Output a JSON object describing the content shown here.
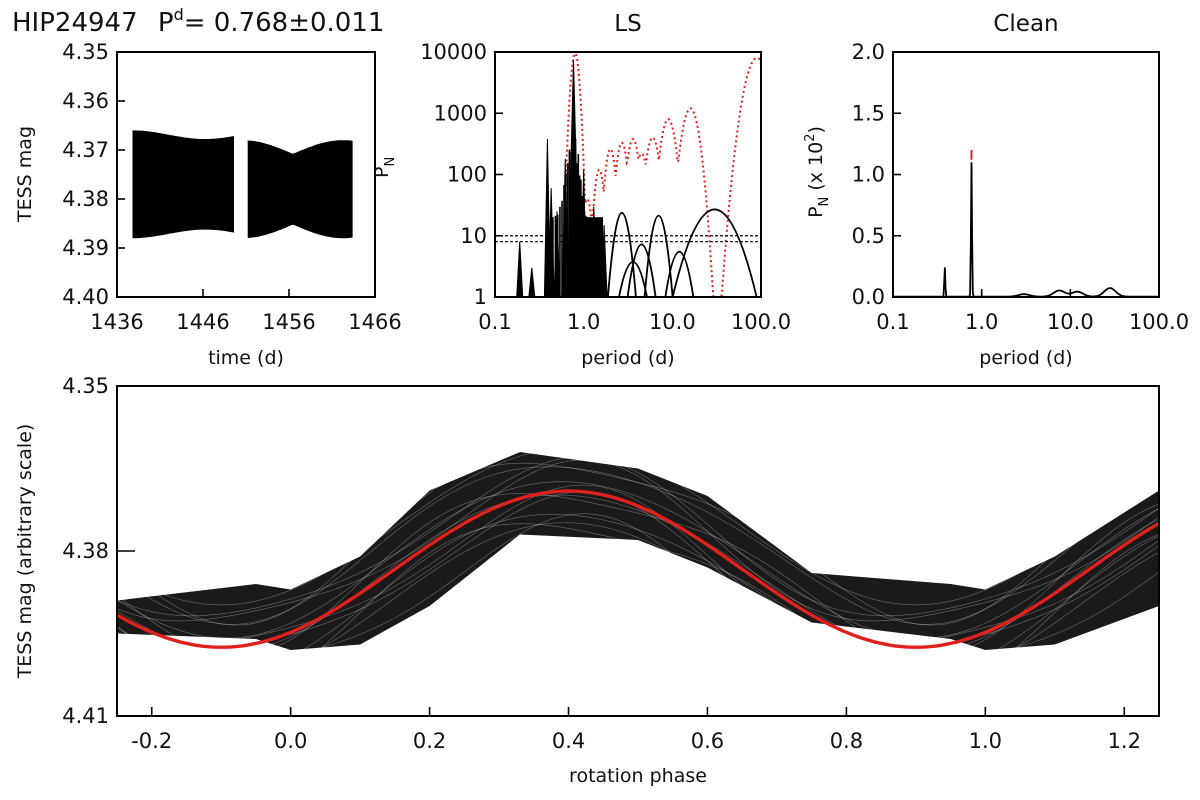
{
  "header": {
    "star": "HIP24947",
    "period_symbol": "P",
    "period_superscript": "d",
    "period_text": "= 0.768±0.011"
  },
  "colors": {
    "data": "#000000",
    "fit": "#e0201c",
    "window": "#e0201c"
  },
  "chart_data": [
    {
      "id": "lightcurve",
      "type": "scatter",
      "xlabel": "time (d)",
      "ylabel": "TESS mag",
      "xlim": [
        1436,
        1466
      ],
      "ylim": [
        4.4,
        4.35
      ],
      "xticks": [
        "1436",
        "1446",
        "1456",
        "1466"
      ],
      "yticks": [
        "4.35",
        "4.36",
        "4.37",
        "4.38",
        "4.39",
        "4.40"
      ],
      "segments": [
        {
          "t_start": 1437.8,
          "t_end": 1449.6,
          "center_mag": 4.377,
          "amplitude_mag": 0.011,
          "period_d": 0.768
        },
        {
          "t_start": 1451.2,
          "t_end": 1463.4,
          "center_mag": 4.378,
          "amplitude_mag": 0.01,
          "period_d": 0.768
        }
      ]
    },
    {
      "id": "ls_periodogram",
      "type": "line",
      "title": "LS",
      "xlabel": "period (d)",
      "ylabel": "P",
      "ylabel_subscript": "N",
      "xscale": "log",
      "yscale": "log",
      "xlim": [
        0.1,
        100
      ],
      "ylim": [
        1,
        10000
      ],
      "xticks": [
        "0.1",
        "1.0",
        "10.0",
        "100.0"
      ],
      "yticks": [
        "1",
        "10",
        "100",
        "1000",
        "10000"
      ],
      "false_alarm_levels": [
        8,
        10
      ],
      "series": [
        {
          "name": "periodogram",
          "peaks": [
            {
              "period": 0.19,
              "power": 8
            },
            {
              "period": 0.26,
              "power": 3
            },
            {
              "period": 0.39,
              "power": 380
            },
            {
              "period": 0.43,
              "power": 60
            },
            {
              "period": 0.5,
              "power": 25
            },
            {
              "period": 0.62,
              "power": 180
            },
            {
              "period": 0.768,
              "power": 7500
            },
            {
              "period": 1.0,
              "power": 120
            },
            {
              "period": 1.3,
              "power": 30
            },
            {
              "period": 1.7,
              "power": 15
            },
            {
              "period": 2.7,
              "power": 28
            },
            {
              "period": 3.6,
              "power": 4
            },
            {
              "period": 4.5,
              "power": 8
            },
            {
              "period": 7.0,
              "power": 25
            },
            {
              "period": 12.0,
              "power": 6
            },
            {
              "period": 30.0,
              "power": 32
            }
          ]
        },
        {
          "name": "window",
          "peaks": [
            {
              "period": 0.8,
              "power": 9500
            },
            {
              "period": 1.1,
              "power": 40
            },
            {
              "period": 1.5,
              "power": 120
            },
            {
              "period": 2.0,
              "power": 260
            },
            {
              "period": 2.7,
              "power": 330
            },
            {
              "period": 3.6,
              "power": 380
            },
            {
              "period": 4.5,
              "power": 220
            },
            {
              "period": 6.0,
              "power": 400
            },
            {
              "period": 9.0,
              "power": 800
            },
            {
              "period": 16.0,
              "power": 1200
            },
            {
              "period": 90.0,
              "power": 8000
            }
          ]
        }
      ]
    },
    {
      "id": "clean_periodogram",
      "type": "line",
      "title": "Clean",
      "xlabel": "period (d)",
      "ylabel": "P",
      "ylabel_subscript": "N",
      "ylabel_suffix": " (x 10",
      "ylabel_exponent": "2",
      "ylabel_close": ")",
      "xscale": "log",
      "xlim": [
        0.1,
        100
      ],
      "ylim": [
        0,
        2.0
      ],
      "xticks": [
        "0.1",
        "1.0",
        "10.0",
        "100.0"
      ],
      "yticks": [
        "0.0",
        "0.5",
        "1.0",
        "1.5",
        "2.0"
      ],
      "peaks": [
        {
          "period": 0.384,
          "power": 0.24
        },
        {
          "period": 0.768,
          "power": 1.1
        },
        {
          "period": 3.0,
          "power": 0.02
        },
        {
          "period": 7.5,
          "power": 0.05
        },
        {
          "period": 12.0,
          "power": 0.04
        },
        {
          "period": 28.0,
          "power": 0.07
        }
      ],
      "marker": {
        "period": 0.768,
        "power": 1.2
      }
    },
    {
      "id": "phased",
      "type": "scatter",
      "xlabel": "rotation phase",
      "ylabel": "TESS mag (arbitrary scale)",
      "xlim": [
        -0.25,
        1.25
      ],
      "ylim": [
        4.41,
        4.35
      ],
      "xticks": [
        "-0.2",
        "0.0",
        "0.2",
        "0.4",
        "0.6",
        "0.8",
        "1.0",
        "1.2"
      ],
      "yticks": [
        "4.35",
        "4.38",
        "4.41"
      ],
      "fit": {
        "mean": 4.3833,
        "amplitude": 0.0142,
        "phase_of_max_brightness": 0.4
      },
      "scatter_envelope": {
        "points": [
          {
            "phase": -0.25,
            "bright": 4.389,
            "faint": 4.395
          },
          {
            "phase": -0.05,
            "bright": 4.386,
            "faint": 4.396
          },
          {
            "phase": 0.0,
            "bright": 4.387,
            "faint": 4.398
          },
          {
            "phase": 0.1,
            "bright": 4.381,
            "faint": 4.397
          },
          {
            "phase": 0.2,
            "bright": 4.369,
            "faint": 4.39
          },
          {
            "phase": 0.33,
            "bright": 4.362,
            "faint": 4.377
          },
          {
            "phase": 0.5,
            "bright": 4.365,
            "faint": 4.378
          },
          {
            "phase": 0.6,
            "bright": 4.37,
            "faint": 4.383
          },
          {
            "phase": 0.75,
            "bright": 4.384,
            "faint": 4.393
          },
          {
            "phase": 0.95,
            "bright": 4.386,
            "faint": 4.396
          },
          {
            "phase": 1.0,
            "bright": 4.387,
            "faint": 4.398
          },
          {
            "phase": 1.1,
            "bright": 4.381,
            "faint": 4.397
          },
          {
            "phase": 1.25,
            "bright": 4.369,
            "faint": 4.39
          }
        ]
      }
    }
  ]
}
